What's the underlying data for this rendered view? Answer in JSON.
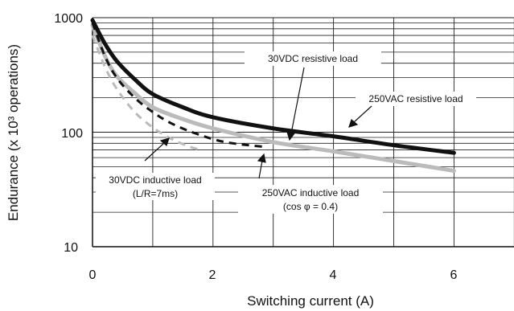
{
  "chart_data": {
    "type": "line",
    "xlabel": "Switching current (A)",
    "ylabel": "Endurance (x 10³ operations)",
    "xlim": [
      0,
      7
    ],
    "ylim": [
      10,
      1000
    ],
    "y_scale": "log",
    "x_ticks": [
      "0",
      "2",
      "4",
      "6"
    ],
    "y_ticks": [
      "10",
      "100",
      "1000"
    ],
    "grid": true,
    "series": [
      {
        "name": "250VAC resistive load",
        "color": "#111111",
        "x": [
          0,
          0.2,
          0.4,
          0.7,
          1.0,
          1.5,
          2.0,
          3.0,
          4.0,
          5.0,
          6.0
        ],
        "y": [
          950,
          600,
          420,
          290,
          215,
          165,
          135,
          108,
          92,
          77,
          66
        ]
      },
      {
        "name": "30VDC resistive load",
        "color": "#bbbbbb",
        "x": [
          0,
          0.2,
          0.4,
          0.7,
          1.0,
          1.5,
          2.0,
          3.0,
          4.0,
          5.0,
          6.0
        ],
        "y": [
          860,
          470,
          310,
          220,
          165,
          130,
          108,
          82,
          68,
          56,
          46
        ]
      },
      {
        "name": "30VDC inductive load (L/R=7ms)",
        "color": "#bbbbbb",
        "dashed": true,
        "x": [
          0,
          0.2,
          0.4,
          0.7,
          1.0,
          1.3,
          1.6,
          1.8
        ],
        "y": [
          700,
          380,
          240,
          150,
          110,
          88,
          75,
          70
        ]
      },
      {
        "name": "250VAC inductive load (cos φ = 0.4)",
        "color": "#111111",
        "dashed": true,
        "x": [
          0,
          0.2,
          0.4,
          0.7,
          1.0,
          1.3,
          1.7,
          2.2,
          2.9
        ],
        "y": [
          900,
          470,
          300,
          200,
          150,
          120,
          98,
          82,
          74
        ]
      }
    ],
    "annotations": {
      "dc_resistive": "30VDC resistive load",
      "ac_resistive": "250VAC resistive load",
      "dc_inductive_line1": "30VDC inductive load",
      "dc_inductive_line2": "(L/R=7ms)",
      "ac_inductive_line1": "250VAC inductive load",
      "ac_inductive_line2": "(cos φ = 0.4)"
    }
  }
}
